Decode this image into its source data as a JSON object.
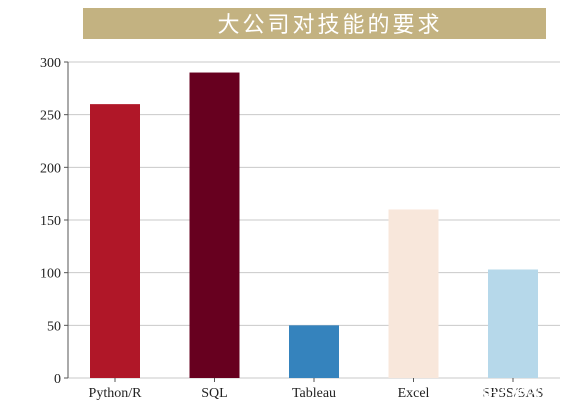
{
  "chart_data": {
    "type": "bar",
    "title": "大公司对技能的要求",
    "categories": [
      "Python/R",
      "SQL",
      "Tableau",
      "Excel",
      "SPSS/SAS"
    ],
    "values": [
      260,
      290,
      50,
      160,
      103
    ],
    "colors": [
      "#b01728",
      "#67001f",
      "#3583bd",
      "#f8e7db",
      "#b6d8ea"
    ],
    "xlabel": "",
    "ylabel": "",
    "ylim": [
      0,
      300
    ],
    "yticks": [
      0,
      50,
      100,
      150,
      200,
      250,
      300
    ],
    "grid": "horizontal",
    "title_banner_color": "#c3b281"
  },
  "watermark": {
    "text": "知乎 @数据分析特"
  }
}
